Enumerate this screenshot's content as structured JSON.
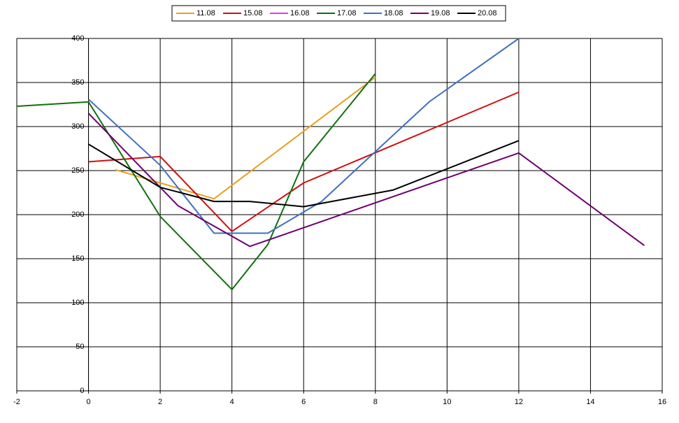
{
  "chart_data": {
    "type": "line",
    "series": [
      {
        "name": "11.08",
        "color": "#e8a020",
        "x": [
          0.75,
          2,
          3.5,
          8
        ],
        "values": [
          251,
          236,
          218,
          356
        ]
      },
      {
        "name": "15.08",
        "color": "#d01010",
        "x": [
          0,
          2,
          4,
          6,
          12
        ],
        "values": [
          260,
          266,
          181,
          236,
          339
        ]
      },
      {
        "name": "16.08",
        "color": "#e040e0",
        "x": [],
        "values": []
      },
      {
        "name": "17.08",
        "color": "#107010",
        "x": [
          -2,
          0,
          2,
          4,
          5,
          6,
          8
        ],
        "values": [
          323,
          328,
          198,
          115,
          166,
          260,
          360
        ]
      },
      {
        "name": "18.08",
        "color": "#4070c0",
        "x": [
          0,
          2,
          3.5,
          5,
          6.5,
          9.5,
          12
        ],
        "values": [
          331,
          256,
          179,
          179,
          215,
          328,
          400
        ]
      },
      {
        "name": "19.08",
        "color": "#700070",
        "x": [
          0,
          2.5,
          4.5,
          12,
          15.5
        ],
        "values": [
          315,
          210,
          164,
          270,
          165
        ]
      },
      {
        "name": "20.08",
        "color": "#000000",
        "x": [
          0,
          2,
          3.5,
          4.5,
          6,
          8.5,
          12
        ],
        "values": [
          280,
          231,
          215,
          215,
          209,
          228,
          284
        ]
      }
    ],
    "xlim": [
      -2,
      16
    ],
    "xticks": [
      -2,
      0,
      2,
      4,
      6,
      8,
      10,
      12,
      14,
      16
    ],
    "ylim": [
      0,
      400
    ],
    "yticks": [
      0,
      50,
      100,
      150,
      200,
      250,
      300,
      350,
      400
    ],
    "grid": true,
    "legend": "top"
  }
}
